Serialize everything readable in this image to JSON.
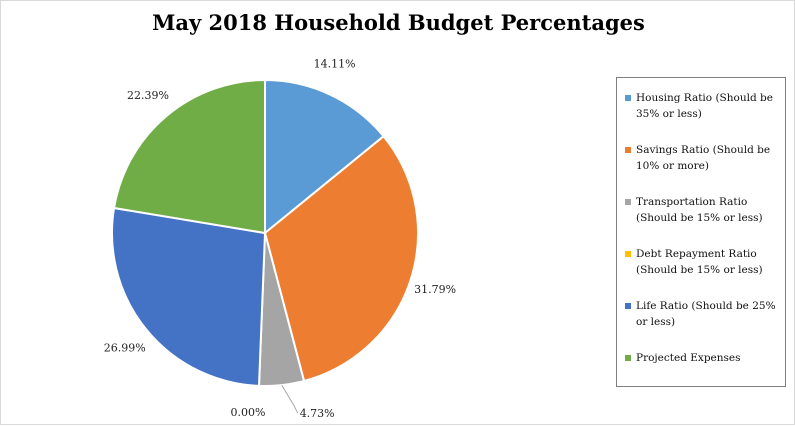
{
  "chart_data": {
    "type": "pie",
    "title": "May 2018 Household Budget Percentages",
    "categories": [
      "Housing Ratio (Should be 35% or less)",
      "Savings Ratio (Should be 10% or more)",
      "Transportation Ratio (Should be 15% or less)",
      "Debt Repayment Ratio (Should be 15% or less)",
      "Life Ratio (Should be 25% or less)",
      "Projected Expenses"
    ],
    "values": [
      14.11,
      31.79,
      4.73,
      0.0,
      26.99,
      22.39
    ],
    "data_labels": [
      "14.11%",
      "31.79%",
      "4.73%",
      "0.00%",
      "26.99%",
      "22.39%"
    ],
    "colors": [
      "#5b9bd5",
      "#ed7d31",
      "#a5a5a5",
      "#ffc000",
      "#4472c4",
      "#70ad47"
    ],
    "legend_position": "right"
  }
}
